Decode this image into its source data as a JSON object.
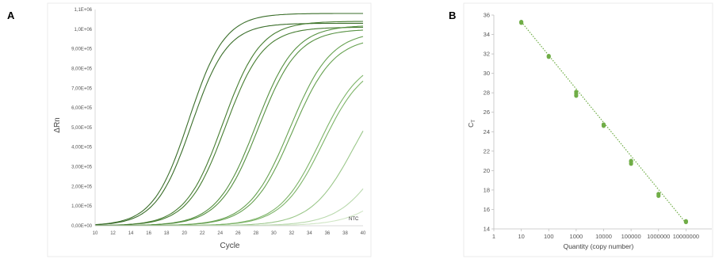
{
  "panels": {
    "a_label": "A",
    "b_label": "B"
  },
  "chart_data": [
    {
      "type": "line",
      "title": "",
      "xlabel": "Cycle",
      "ylabel": "ΔRn",
      "xlim": [
        10,
        40
      ],
      "ylim": [
        0,
        1100000
      ],
      "x_ticks": [
        "10",
        "12",
        "14",
        "16",
        "18",
        "20",
        "22",
        "24",
        "26",
        "28",
        "30",
        "32",
        "34",
        "36",
        "38",
        "40"
      ],
      "y_ticks": [
        "0,00E+00",
        "1,00E+05",
        "2,00E+05",
        "3,00E+05",
        "4,00E+05",
        "5,00E+05",
        "6,00E+05",
        "7,00E+05",
        "8,00E+05",
        "9,00E+05",
        "1,0E+06",
        "1,1E+06"
      ],
      "grid": false,
      "annotation": "NTC",
      "series": [
        {
          "color": "#3a6e2a",
          "plateau": 1080000,
          "midpoint": 20.5,
          "slope": 2.0,
          "x": [
            10,
            14,
            18,
            20,
            22,
            26,
            30,
            34,
            38,
            40
          ],
          "y": [
            6000,
            60000,
            290000,
            520000,
            710000,
            930000,
            1010000,
            1040000,
            1060000,
            1065000
          ]
        },
        {
          "color": "#3a6e2a",
          "plateau": 1030000,
          "midpoint": 20.8,
          "slope": 2.0,
          "x": [
            10,
            14,
            18,
            20,
            22,
            26,
            30,
            34,
            38,
            40
          ],
          "y": [
            6000,
            50000,
            250000,
            470000,
            660000,
            880000,
            960000,
            990000,
            1010000,
            1015000
          ]
        },
        {
          "color": "#467d31",
          "plateau": 1040000,
          "midpoint": 24.3,
          "slope": 2.1,
          "x": [
            10,
            16,
            20,
            24,
            26,
            30,
            34,
            38,
            40
          ],
          "y": [
            1000,
            20000,
            130000,
            480000,
            690000,
            900000,
            980000,
            1010000,
            1020000
          ]
        },
        {
          "color": "#467d31",
          "plateau": 1010000,
          "midpoint": 24.6,
          "slope": 2.1,
          "x": [
            10,
            16,
            20,
            24,
            26,
            30,
            34,
            38,
            40
          ],
          "y": [
            1000,
            17000,
            115000,
            450000,
            650000,
            870000,
            950000,
            990000,
            1000000
          ]
        },
        {
          "color": "#559040",
          "plateau": 1020000,
          "midpoint": 28.0,
          "slope": 2.2,
          "x": [
            10,
            20,
            24,
            28,
            30,
            34,
            38,
            40
          ],
          "y": [
            300,
            30000,
            140000,
            500000,
            700000,
            920000,
            990000,
            1000000
          ]
        },
        {
          "color": "#559040",
          "plateau": 1000000,
          "midpoint": 28.3,
          "slope": 2.2,
          "x": [
            10,
            20,
            24,
            28,
            30,
            34,
            38,
            40
          ],
          "y": [
            300,
            25000,
            125000,
            470000,
            680000,
            900000,
            970000,
            985000
          ]
        },
        {
          "color": "#66a150",
          "plateau": 990000,
          "midpoint": 31.8,
          "slope": 2.3,
          "x": [
            10,
            24,
            28,
            32,
            34,
            38,
            40
          ],
          "y": [
            200,
            30000,
            170000,
            510000,
            700000,
            880000,
            920000
          ]
        },
        {
          "color": "#66a150",
          "plateau": 960000,
          "midpoint": 32.1,
          "slope": 2.3,
          "x": [
            10,
            24,
            28,
            32,
            34,
            38,
            40
          ],
          "y": [
            200,
            25000,
            150000,
            470000,
            660000,
            860000,
            900000
          ]
        },
        {
          "color": "#7db468",
          "plateau": 860000,
          "midpoint": 35.2,
          "slope": 2.3,
          "x": [
            10,
            28,
            32,
            35,
            38,
            40
          ],
          "y": [
            200,
            40000,
            160000,
            430000,
            680000,
            770000
          ]
        },
        {
          "color": "#7db468",
          "plateau": 840000,
          "midpoint": 35.5,
          "slope": 2.3,
          "x": [
            10,
            28,
            32,
            35,
            38,
            40
          ],
          "y": [
            200,
            35000,
            140000,
            400000,
            650000,
            750000
          ]
        },
        {
          "color": "#9bc78a",
          "plateau": 800000,
          "midpoint": 39.0,
          "slope": 2.4,
          "x": [
            10,
            30,
            34,
            36,
            38,
            40
          ],
          "y": [
            200,
            20000,
            100000,
            200000,
            330000,
            560000
          ]
        },
        {
          "color": "#b9d9ad",
          "plateau": 700000,
          "midpoint": 42.5,
          "slope": 2.5,
          "x": [
            10,
            34,
            36,
            38,
            40
          ],
          "y": [
            100,
            20000,
            50000,
            130000,
            270000
          ]
        },
        {
          "color": "#cfe5c4",
          "plateau": 500000,
          "midpoint": 44.5,
          "slope": 2.6,
          "x": [
            10,
            34,
            36,
            38,
            40
          ],
          "y": [
            100,
            10000,
            25000,
            55000,
            120000
          ]
        }
      ]
    },
    {
      "type": "scatter",
      "title": "",
      "xlabel": "Quantity (copy number)",
      "ylabel": "CT",
      "ylabel_main": "C",
      "ylabel_sub": "T",
      "xscale": "log",
      "xlim": [
        1,
        100000000
      ],
      "ylim": [
        14,
        36
      ],
      "x_ticks": [
        "1",
        "10",
        "100",
        "1000",
        "10000",
        "100000",
        "1000000",
        "10000000"
      ],
      "y_ticks": [
        "14",
        "16",
        "18",
        "20",
        "22",
        "24",
        "26",
        "28",
        "30",
        "32",
        "34",
        "36"
      ],
      "grid": false,
      "color": "#70ad47",
      "points": [
        {
          "x": 10,
          "y": 35.2
        },
        {
          "x": 10,
          "y": 35.3
        },
        {
          "x": 100,
          "y": 31.7
        },
        {
          "x": 100,
          "y": 31.8
        },
        {
          "x": 1000,
          "y": 27.7
        },
        {
          "x": 1000,
          "y": 27.9
        },
        {
          "x": 1000,
          "y": 28.1
        },
        {
          "x": 10000,
          "y": 24.6
        },
        {
          "x": 10000,
          "y": 24.75
        },
        {
          "x": 100000,
          "y": 20.7
        },
        {
          "x": 100000,
          "y": 20.9
        },
        {
          "x": 100000,
          "y": 21.0
        },
        {
          "x": 1000000,
          "y": 17.4
        },
        {
          "x": 1000000,
          "y": 17.6
        },
        {
          "x": 10000000,
          "y": 14.7
        },
        {
          "x": 10000000,
          "y": 14.8
        }
      ],
      "trendline": {
        "x": [
          10,
          10000000
        ],
        "y": [
          35.3,
          14.6
        ],
        "style": "dotted"
      }
    }
  ]
}
